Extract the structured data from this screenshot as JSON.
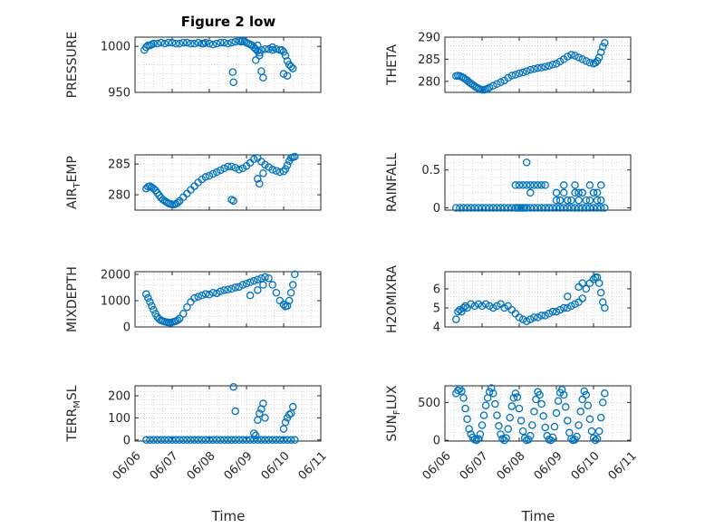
{
  "figure": {
    "title": "Figure 2 low",
    "xlabel": "Time"
  },
  "chart_data": [
    {
      "type": "scatter",
      "ylabel": "PRESSURE",
      "xlim": [
        "06/06",
        "06/11"
      ],
      "ylim": [
        950,
        1010
      ],
      "yticks": [
        "950",
        "1000"
      ],
      "xticks": [
        "06/06",
        "06/07",
        "06/08",
        "06/09",
        "06/10",
        "06/11"
      ],
      "grid": true,
      "x": [
        6.25,
        6.3,
        6.35,
        6.4,
        6.45,
        6.5,
        6.6,
        6.7,
        6.8,
        6.9,
        7.0,
        7.1,
        7.2,
        7.3,
        7.4,
        7.5,
        7.6,
        7.7,
        7.8,
        7.85,
        7.9,
        8.0,
        8.1,
        8.2,
        8.3,
        8.4,
        8.5,
        8.6,
        8.7,
        8.8,
        8.85,
        8.9,
        8.95,
        9.0,
        9.05,
        9.1,
        9.15,
        9.2,
        9.25,
        9.3,
        9.35,
        9.4,
        9.5,
        9.6,
        9.7,
        9.8,
        9.9,
        9.95,
        10.0,
        10.05,
        10.1,
        10.15,
        10.2,
        10.25,
        8.63,
        8.65,
        9.3,
        9.35,
        9.4,
        9.45,
        9.25,
        9.7,
        10.0,
        10.1
      ],
      "y": [
        996,
        999,
        1001,
        1001,
        1002,
        1003,
        1003,
        1004,
        1003,
        1004,
        1004,
        1003,
        1003,
        1004,
        1004,
        1003,
        1003,
        1004,
        1003,
        1003,
        1004,
        1003,
        1002,
        1003,
        1004,
        1004,
        1003,
        1004,
        1005,
        1006,
        1005,
        1006,
        1005,
        1004,
        1003,
        1002,
        1001,
        999,
        997,
        995,
        993,
        996,
        997,
        997,
        996,
        997,
        996,
        996,
        994,
        990,
        984,
        980,
        978,
        976,
        972,
        961,
        1001,
        990,
        973,
        966,
        985,
        999,
        970,
        968
      ],
      "series": [
        {
          "name": ""
        }
      ]
    },
    {
      "type": "scatter",
      "ylabel": "THETA",
      "xlim": [
        "06/06",
        "06/11"
      ],
      "ylim": [
        277.5,
        290
      ],
      "yticks": [
        "280",
        "285",
        "290"
      ],
      "xticks": [
        "06/06",
        "06/07",
        "06/08",
        "06/09",
        "06/10",
        "06/11"
      ],
      "grid": true,
      "x": [
        6.3,
        6.35,
        6.4,
        6.45,
        6.5,
        6.55,
        6.6,
        6.65,
        6.7,
        6.75,
        6.8,
        6.85,
        6.9,
        6.95,
        7.0,
        7.05,
        7.1,
        7.15,
        7.2,
        7.3,
        7.4,
        7.5,
        7.6,
        7.7,
        7.8,
        7.9,
        8.0,
        8.1,
        8.2,
        8.3,
        8.4,
        8.5,
        8.6,
        8.7,
        8.8,
        8.9,
        9.0,
        9.1,
        9.2,
        9.3,
        9.4,
        9.5,
        9.6,
        9.7,
        9.8,
        9.9,
        10.0,
        10.05,
        10.1,
        10.15,
        10.2,
        10.25,
        10.3
      ],
      "y": [
        281.2,
        281.3,
        281.2,
        281.0,
        280.8,
        280.5,
        280.2,
        279.8,
        279.5,
        279.2,
        278.9,
        278.6,
        278.4,
        278.2,
        278.1,
        278.1,
        278.2,
        278.3,
        278.6,
        279.0,
        279.4,
        279.8,
        280.2,
        280.8,
        281.3,
        281.5,
        281.8,
        282.0,
        282.3,
        282.6,
        282.8,
        283.0,
        283.1,
        283.3,
        283.5,
        283.8,
        284.0,
        284.5,
        285.0,
        285.6,
        286.0,
        285.8,
        285.4,
        285.0,
        284.6,
        284.2,
        284.0,
        284.2,
        284.6,
        285.4,
        286.6,
        287.8,
        288.7
      ],
      "series": [
        {
          "name": ""
        }
      ]
    },
    {
      "type": "scatter",
      "ylabel": "AIR_TEMP",
      "xlim": [
        "06/06",
        "06/11"
      ],
      "ylim": [
        277.5,
        286.5
      ],
      "yticks": [
        "280",
        "285"
      ],
      "xticks": [
        "06/06",
        "06/07",
        "06/08",
        "06/09",
        "06/10",
        "06/11"
      ],
      "grid": true,
      "x": [
        6.3,
        6.35,
        6.4,
        6.45,
        6.5,
        6.55,
        6.6,
        6.65,
        6.7,
        6.75,
        6.8,
        6.85,
        6.9,
        6.95,
        7.0,
        7.05,
        7.1,
        7.15,
        7.2,
        7.3,
        7.4,
        7.5,
        7.6,
        7.7,
        7.8,
        7.9,
        8.0,
        8.1,
        8.2,
        8.3,
        8.4,
        8.5,
        8.6,
        8.7,
        8.8,
        8.9,
        9.0,
        9.1,
        9.2,
        9.3,
        9.4,
        9.5,
        9.6,
        9.7,
        9.8,
        9.9,
        10.0,
        10.05,
        10.1,
        10.15,
        10.2,
        10.25,
        10.3,
        8.6,
        8.65,
        9.3,
        9.35,
        9.45
      ],
      "y": [
        281.0,
        281.3,
        281.4,
        281.2,
        281.0,
        280.7,
        280.3,
        279.9,
        279.5,
        279.2,
        279.0,
        278.8,
        278.6,
        278.5,
        278.4,
        278.4,
        278.5,
        278.7,
        279.0,
        279.6,
        280.2,
        280.8,
        281.4,
        282.0,
        282.5,
        282.9,
        283.1,
        283.4,
        283.7,
        284.0,
        284.3,
        284.6,
        284.6,
        284.4,
        284.1,
        284.3,
        284.7,
        285.2,
        285.8,
        286.0,
        285.4,
        284.9,
        284.5,
        284.1,
        283.9,
        283.7,
        283.8,
        284.2,
        284.8,
        285.5,
        286.0,
        286.1,
        286.2,
        279.2,
        279.0,
        282.6,
        281.8,
        283.5
      ],
      "series": [
        {
          "name": ""
        }
      ]
    },
    {
      "type": "scatter",
      "ylabel": "RAINFALL",
      "xlim": [
        "06/06",
        "06/11"
      ],
      "ylim": [
        -0.03,
        0.7
      ],
      "yticks": [
        "0",
        "0.5"
      ],
      "xticks": [
        "06/06",
        "06/07",
        "06/08",
        "06/09",
        "06/10",
        "06/11"
      ],
      "grid": true,
      "x": [
        6.3,
        6.4,
        6.5,
        6.6,
        6.7,
        6.8,
        6.9,
        7.0,
        7.1,
        7.2,
        7.3,
        7.4,
        7.5,
        7.6,
        7.7,
        7.8,
        7.9,
        7.95,
        8.0,
        8.05,
        8.1,
        8.15,
        8.2,
        8.3,
        8.4,
        8.5,
        8.6,
        8.7,
        8.8,
        8.9,
        9.0,
        9.1,
        9.2,
        9.3,
        9.4,
        9.5,
        9.6,
        9.7,
        9.8,
        9.9,
        10.0,
        10.1,
        10.2,
        10.3,
        7.9,
        8.0,
        8.1,
        8.2,
        8.3,
        8.4,
        8.5,
        8.6,
        8.7,
        8.2,
        8.3,
        9.0,
        9.1,
        9.2,
        9.3,
        9.5,
        9.6,
        9.7,
        9.8,
        9.9,
        10.0,
        10.1,
        10.2,
        9.2,
        9.3,
        9.5,
        9.6,
        9.7,
        9.9,
        10.0,
        9.0,
        9.4,
        10.1,
        10.2,
        9.1
      ],
      "y": [
        0,
        0,
        0,
        0,
        0,
        0,
        0,
        0,
        0,
        0,
        0,
        0,
        0,
        0,
        0,
        0,
        0,
        0,
        0,
        0,
        0,
        0,
        0,
        0,
        0,
        0,
        0,
        0,
        0,
        0,
        0,
        0,
        0,
        0,
        0,
        0,
        0,
        0,
        0,
        0,
        0,
        0,
        0,
        0,
        0.3,
        0.3,
        0.3,
        0.3,
        0.3,
        0.3,
        0.3,
        0.3,
        0.3,
        0.6,
        0.2,
        0.1,
        0.1,
        0.2,
        0.1,
        0.2,
        0.1,
        0.2,
        0.1,
        0.1,
        0.2,
        0.1,
        0.3,
        0.3,
        0.1,
        0.3,
        0.2,
        0.2,
        0.3,
        0.2,
        0.2,
        0.1,
        0.2,
        0.1,
        0.1
      ],
      "series": [
        {
          "name": ""
        }
      ]
    },
    {
      "type": "scatter",
      "ylabel": "MIXDEPTH",
      "xlim": [
        "06/06",
        "06/11"
      ],
      "ylim": [
        0,
        2100
      ],
      "yticks": [
        "0",
        "1000",
        "2000"
      ],
      "xticks": [
        "06/06",
        "06/07",
        "06/08",
        "06/09",
        "06/10",
        "06/11"
      ],
      "grid": true,
      "x": [
        6.3,
        6.35,
        6.4,
        6.45,
        6.5,
        6.55,
        6.6,
        6.65,
        6.7,
        6.75,
        6.8,
        6.85,
        6.9,
        6.95,
        7.0,
        7.05,
        7.1,
        7.15,
        7.2,
        7.3,
        7.4,
        7.5,
        7.6,
        7.7,
        7.8,
        7.9,
        8.0,
        8.1,
        8.2,
        8.3,
        8.4,
        8.5,
        8.6,
        8.7,
        8.8,
        8.9,
        9.0,
        9.1,
        9.2,
        9.3,
        9.4,
        9.5,
        9.6,
        9.7,
        9.8,
        9.9,
        10.0,
        10.05,
        10.1,
        10.15,
        10.2,
        10.25,
        10.3,
        9.1,
        9.3,
        9.45
      ],
      "y": [
        1250,
        1100,
        950,
        800,
        650,
        500,
        380,
        300,
        250,
        220,
        200,
        180,
        170,
        160,
        180,
        200,
        220,
        260,
        320,
        500,
        750,
        950,
        1100,
        1150,
        1200,
        1250,
        1230,
        1300,
        1280,
        1350,
        1400,
        1420,
        1450,
        1500,
        1520,
        1600,
        1650,
        1700,
        1750,
        1800,
        1850,
        1900,
        1850,
        1600,
        1300,
        1000,
        850,
        780,
        800,
        1000,
        1300,
        1600,
        2000,
        1200,
        1400,
        1600
      ],
      "series": [
        {
          "name": ""
        }
      ]
    },
    {
      "type": "scatter",
      "ylabel": "H2OMIXRA",
      "xlim": [
        "06/06",
        "06/11"
      ],
      "ylim": [
        4,
        6.9
      ],
      "yticks": [
        "4",
        "5",
        "6"
      ],
      "xticks": [
        "06/06",
        "06/07",
        "06/08",
        "06/09",
        "06/10",
        "06/11"
      ],
      "grid": true,
      "x": [
        6.3,
        6.35,
        6.4,
        6.45,
        6.5,
        6.55,
        6.6,
        6.7,
        6.8,
        6.9,
        7.0,
        7.1,
        7.2,
        7.3,
        7.4,
        7.5,
        7.6,
        7.7,
        7.8,
        7.9,
        8.0,
        8.1,
        8.2,
        8.3,
        8.4,
        8.5,
        8.6,
        8.7,
        8.8,
        8.9,
        9.0,
        9.1,
        9.2,
        9.3,
        9.4,
        9.5,
        9.6,
        9.7,
        9.8,
        9.9,
        10.0,
        10.05,
        10.1,
        10.15,
        10.2,
        10.25,
        10.3,
        9.3,
        9.6,
        9.7
      ],
      "y": [
        4.4,
        4.8,
        4.9,
        4.8,
        5.0,
        5.1,
        5.0,
        5.2,
        5.1,
        5.2,
        5.1,
        5.2,
        5.1,
        5.0,
        5.1,
        5.2,
        5.0,
        5.1,
        4.9,
        4.7,
        4.5,
        4.4,
        4.3,
        4.4,
        4.5,
        4.5,
        4.6,
        4.6,
        4.7,
        4.8,
        4.8,
        4.9,
        5.0,
        5.0,
        5.1,
        5.2,
        5.3,
        5.5,
        6.0,
        6.3,
        6.5,
        6.6,
        6.6,
        6.3,
        5.8,
        5.3,
        5.0,
        5.6,
        6.1,
        6.3
      ],
      "series": [
        {
          "name": ""
        }
      ]
    },
    {
      "type": "scatter",
      "ylabel": "TERR_MSL",
      "xlim": [
        "06/06",
        "06/11"
      ],
      "ylim": [
        -5,
        245
      ],
      "yticks": [
        "0",
        "100",
        "200"
      ],
      "xticks": [
        "06/06",
        "06/07",
        "06/08",
        "06/09",
        "06/10",
        "06/11"
      ],
      "grid": true,
      "x": [
        6.3,
        6.4,
        6.5,
        6.6,
        6.7,
        6.8,
        6.9,
        7.0,
        7.1,
        7.2,
        7.3,
        7.4,
        7.5,
        7.6,
        7.7,
        7.8,
        7.9,
        8.0,
        8.1,
        8.2,
        8.3,
        8.4,
        8.5,
        8.6,
        8.7,
        8.8,
        8.9,
        9.0,
        9.1,
        9.2,
        9.3,
        9.4,
        9.5,
        9.6,
        9.7,
        9.8,
        9.9,
        10.0,
        10.1,
        10.2,
        10.3,
        8.65,
        8.7,
        9.3,
        9.35,
        9.4,
        9.45,
        9.5,
        9.2,
        9.25,
        10.0,
        10.05,
        10.1,
        10.15,
        10.2,
        10.25
      ],
      "y": [
        0,
        0,
        0,
        0,
        0,
        0,
        0,
        0,
        0,
        0,
        0,
        0,
        0,
        0,
        0,
        0,
        0,
        0,
        0,
        0,
        0,
        0,
        0,
        0,
        0,
        0,
        0,
        0,
        0,
        0,
        0,
        0,
        0,
        0,
        0,
        0,
        0,
        0,
        0,
        0,
        0,
        240,
        130,
        90,
        120,
        140,
        165,
        100,
        30,
        20,
        50,
        80,
        100,
        115,
        120,
        150
      ],
      "series": [
        {
          "name": ""
        }
      ]
    },
    {
      "type": "scatter",
      "ylabel": "SUN_FLUX",
      "xlim": [
        "06/06",
        "06/11"
      ],
      "ylim": [
        -10,
        720
      ],
      "yticks": [
        "0",
        "500"
      ],
      "xticks": [
        "06/06",
        "06/07",
        "06/08",
        "06/09",
        "06/10",
        "06/11"
      ],
      "grid": true,
      "x": [
        6.3,
        6.35,
        6.4,
        6.45,
        6.5,
        6.55,
        6.6,
        6.65,
        6.7,
        6.75,
        6.8,
        6.85,
        6.9,
        6.95,
        7.0,
        7.05,
        7.1,
        7.15,
        7.2,
        7.25,
        7.3,
        7.35,
        7.4,
        7.45,
        7.5,
        7.55,
        7.6,
        7.65,
        7.7,
        7.75,
        7.8,
        7.85,
        7.9,
        7.95,
        8.0,
        8.05,
        8.1,
        8.15,
        8.2,
        8.25,
        8.3,
        8.35,
        8.4,
        8.45,
        8.5,
        8.55,
        8.6,
        8.65,
        8.7,
        8.75,
        8.8,
        8.85,
        8.9,
        8.95,
        9.0,
        9.05,
        9.1,
        9.15,
        9.2,
        9.25,
        9.3,
        9.35,
        9.4,
        9.45,
        9.5,
        9.55,
        9.6,
        9.65,
        9.7,
        9.75,
        9.8,
        9.85,
        9.9,
        9.95,
        10.0,
        10.05,
        10.1,
        10.15,
        10.2,
        10.25,
        10.3
      ],
      "y": [
        620,
        660,
        680,
        650,
        560,
        420,
        280,
        150,
        80,
        40,
        10,
        0,
        20,
        80,
        200,
        330,
        460,
        560,
        640,
        690,
        620,
        480,
        330,
        190,
        80,
        20,
        0,
        30,
        150,
        300,
        450,
        560,
        620,
        570,
        420,
        260,
        120,
        30,
        0,
        10,
        60,
        200,
        380,
        540,
        640,
        600,
        480,
        320,
        170,
        60,
        10,
        0,
        40,
        180,
        360,
        520,
        630,
        670,
        600,
        440,
        260,
        100,
        20,
        0,
        10,
        50,
        200,
        380,
        540,
        650,
        600,
        460,
        280,
        120,
        30,
        0,
        20,
        120,
        300,
        500,
        620
      ],
      "series": [
        {
          "name": ""
        }
      ]
    }
  ]
}
